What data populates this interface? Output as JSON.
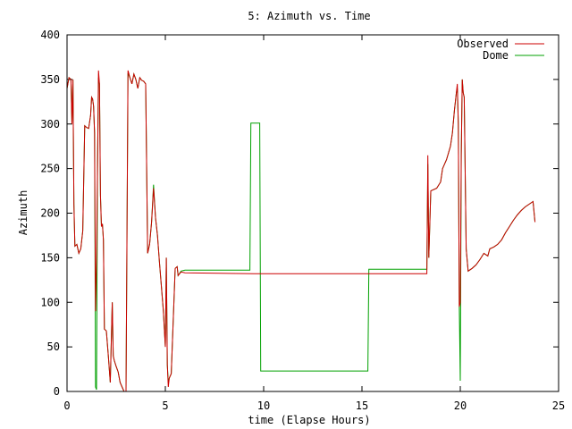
{
  "chart_data": {
    "type": "line",
    "title": "5: Azimuth vs. Time",
    "xlabel": "time (Elapse Hours)",
    "ylabel": "Azimuth",
    "xlim": [
      0,
      25
    ],
    "ylim": [
      0,
      400
    ],
    "xticks": [
      0,
      5,
      10,
      15,
      20,
      25
    ],
    "yticks": [
      0,
      50,
      100,
      150,
      200,
      250,
      300,
      350,
      400
    ],
    "grid": false,
    "legend_position": "top-right",
    "series": [
      {
        "name": "Observed",
        "color": "#cc0000",
        "points": [
          [
            0.0,
            340
          ],
          [
            0.1,
            352
          ],
          [
            0.2,
            350
          ],
          [
            0.25,
            300
          ],
          [
            0.3,
            350
          ],
          [
            0.35,
            210
          ],
          [
            0.4,
            163
          ],
          [
            0.5,
            165
          ],
          [
            0.6,
            155
          ],
          [
            0.7,
            160
          ],
          [
            0.8,
            180
          ],
          [
            0.9,
            298
          ],
          [
            1.0,
            296
          ],
          [
            1.1,
            295
          ],
          [
            1.2,
            310
          ],
          [
            1.25,
            330
          ],
          [
            1.3,
            328
          ],
          [
            1.35,
            320
          ],
          [
            1.4,
            290
          ],
          [
            1.45,
            90
          ],
          [
            1.5,
            150
          ],
          [
            1.55,
            250
          ],
          [
            1.6,
            360
          ],
          [
            1.65,
            345
          ],
          [
            1.7,
            220
          ],
          [
            1.75,
            185
          ],
          [
            1.8,
            188
          ],
          [
            1.85,
            170
          ],
          [
            1.9,
            70
          ],
          [
            2.0,
            68
          ],
          [
            2.1,
            40
          ],
          [
            2.2,
            10
          ],
          [
            2.3,
            100
          ],
          [
            2.35,
            40
          ],
          [
            2.4,
            35
          ],
          [
            2.5,
            28
          ],
          [
            2.6,
            22
          ],
          [
            2.7,
            10
          ],
          [
            2.8,
            5
          ],
          [
            2.9,
            0
          ],
          [
            3.0,
            0
          ],
          [
            3.1,
            360
          ],
          [
            3.2,
            352
          ],
          [
            3.3,
            345
          ],
          [
            3.4,
            356
          ],
          [
            3.5,
            350
          ],
          [
            3.6,
            340
          ],
          [
            3.7,
            352
          ],
          [
            3.8,
            349
          ],
          [
            3.9,
            348
          ],
          [
            4.0,
            345
          ],
          [
            4.1,
            155
          ],
          [
            4.2,
            165
          ],
          [
            4.3,
            190
          ],
          [
            4.4,
            228
          ],
          [
            4.5,
            195
          ],
          [
            4.6,
            175
          ],
          [
            4.7,
            145
          ],
          [
            4.9,
            90
          ],
          [
            5.0,
            50
          ],
          [
            5.05,
            150
          ],
          [
            5.1,
            30
          ],
          [
            5.15,
            5
          ],
          [
            5.2,
            15
          ],
          [
            5.3,
            20
          ],
          [
            5.5,
            138
          ],
          [
            5.6,
            140
          ],
          [
            5.65,
            130
          ],
          [
            5.8,
            134
          ],
          [
            6.0,
            133
          ],
          [
            9.5,
            132
          ],
          [
            15.0,
            132
          ],
          [
            16.0,
            132
          ],
          [
            18.3,
            132
          ],
          [
            18.35,
            265
          ],
          [
            18.4,
            150
          ],
          [
            18.5,
            225
          ],
          [
            18.8,
            228
          ],
          [
            19.0,
            235
          ],
          [
            19.1,
            250
          ],
          [
            19.3,
            260
          ],
          [
            19.5,
            275
          ],
          [
            19.6,
            290
          ],
          [
            19.7,
            315
          ],
          [
            19.8,
            335
          ],
          [
            19.85,
            345
          ],
          [
            19.9,
            300
          ],
          [
            19.95,
            95
          ],
          [
            20.0,
            100
          ],
          [
            20.05,
            265
          ],
          [
            20.1,
            350
          ],
          [
            20.15,
            335
          ],
          [
            20.2,
            330
          ],
          [
            20.3,
            160
          ],
          [
            20.4,
            135
          ],
          [
            20.6,
            138
          ],
          [
            20.8,
            142
          ],
          [
            21.0,
            148
          ],
          [
            21.2,
            155
          ],
          [
            21.4,
            152
          ],
          [
            21.5,
            160
          ],
          [
            21.7,
            162
          ],
          [
            21.9,
            165
          ],
          [
            22.1,
            170
          ],
          [
            22.3,
            178
          ],
          [
            22.5,
            185
          ],
          [
            22.7,
            192
          ],
          [
            22.9,
            198
          ],
          [
            23.1,
            203
          ],
          [
            23.3,
            207
          ],
          [
            23.5,
            210
          ],
          [
            23.7,
            213
          ],
          [
            23.8,
            190
          ]
        ]
      },
      {
        "name": "Dome",
        "color": "#00a000",
        "points": [
          [
            0.0,
            340
          ],
          [
            0.1,
            352
          ],
          [
            0.2,
            350
          ],
          [
            0.25,
            300
          ],
          [
            0.3,
            350
          ],
          [
            0.35,
            210
          ],
          [
            0.4,
            163
          ],
          [
            0.5,
            165
          ],
          [
            0.6,
            155
          ],
          [
            0.7,
            160
          ],
          [
            0.8,
            180
          ],
          [
            0.9,
            298
          ],
          [
            1.0,
            296
          ],
          [
            1.1,
            295
          ],
          [
            1.2,
            310
          ],
          [
            1.25,
            330
          ],
          [
            1.3,
            328
          ],
          [
            1.35,
            320
          ],
          [
            1.4,
            290
          ],
          [
            1.45,
            5
          ],
          [
            1.5,
            2
          ],
          [
            1.55,
            250
          ],
          [
            1.6,
            352
          ],
          [
            1.65,
            345
          ],
          [
            1.7,
            220
          ],
          [
            1.75,
            185
          ],
          [
            1.8,
            188
          ],
          [
            1.85,
            170
          ],
          [
            1.9,
            70
          ],
          [
            2.0,
            68
          ],
          [
            2.1,
            40
          ],
          [
            2.2,
            10
          ],
          [
            2.3,
            100
          ],
          [
            2.35,
            40
          ],
          [
            2.4,
            35
          ],
          [
            2.5,
            28
          ],
          [
            2.6,
            22
          ],
          [
            2.7,
            10
          ],
          [
            2.8,
            5
          ],
          [
            2.9,
            0
          ],
          [
            3.0,
            0
          ],
          [
            3.1,
            357
          ],
          [
            3.2,
            352
          ],
          [
            3.3,
            345
          ],
          [
            3.4,
            356
          ],
          [
            3.5,
            350
          ],
          [
            3.6,
            340
          ],
          [
            3.7,
            352
          ],
          [
            3.8,
            349
          ],
          [
            3.9,
            348
          ],
          [
            4.0,
            345
          ],
          [
            4.1,
            155
          ],
          [
            4.2,
            165
          ],
          [
            4.3,
            190
          ],
          [
            4.4,
            232
          ],
          [
            4.5,
            195
          ],
          [
            4.6,
            175
          ],
          [
            4.7,
            145
          ],
          [
            4.9,
            90
          ],
          [
            5.0,
            50
          ],
          [
            5.05,
            150
          ],
          [
            5.1,
            30
          ],
          [
            5.15,
            10
          ],
          [
            5.2,
            15
          ],
          [
            5.3,
            20
          ],
          [
            5.5,
            138
          ],
          [
            5.6,
            140
          ],
          [
            5.65,
            130
          ],
          [
            5.8,
            135
          ],
          [
            6.0,
            136
          ],
          [
            9.3,
            136
          ],
          [
            9.35,
            301
          ],
          [
            9.8,
            301
          ],
          [
            9.85,
            23
          ],
          [
            15.3,
            23
          ],
          [
            15.35,
            137
          ],
          [
            18.3,
            137
          ],
          [
            18.35,
            255
          ],
          [
            18.4,
            150
          ],
          [
            18.5,
            225
          ],
          [
            18.8,
            228
          ],
          [
            19.0,
            235
          ],
          [
            19.1,
            250
          ],
          [
            19.3,
            260
          ],
          [
            19.5,
            275
          ],
          [
            19.6,
            290
          ],
          [
            19.7,
            315
          ],
          [
            19.8,
            335
          ],
          [
            19.85,
            340
          ],
          [
            19.9,
            300
          ],
          [
            19.95,
            95
          ],
          [
            20.0,
            12
          ],
          [
            20.05,
            265
          ],
          [
            20.1,
            350
          ],
          [
            20.15,
            335
          ],
          [
            20.2,
            330
          ],
          [
            20.3,
            160
          ],
          [
            20.4,
            135
          ],
          [
            20.6,
            138
          ],
          [
            20.8,
            142
          ],
          [
            21.0,
            148
          ],
          [
            21.2,
            155
          ],
          [
            21.4,
            152
          ],
          [
            21.5,
            160
          ],
          [
            21.7,
            162
          ],
          [
            21.9,
            165
          ],
          [
            22.1,
            170
          ],
          [
            22.3,
            178
          ],
          [
            22.5,
            185
          ],
          [
            22.7,
            192
          ],
          [
            22.9,
            198
          ],
          [
            23.1,
            203
          ],
          [
            23.3,
            207
          ],
          [
            23.5,
            210
          ],
          [
            23.7,
            213
          ],
          [
            23.8,
            190
          ]
        ]
      }
    ]
  }
}
